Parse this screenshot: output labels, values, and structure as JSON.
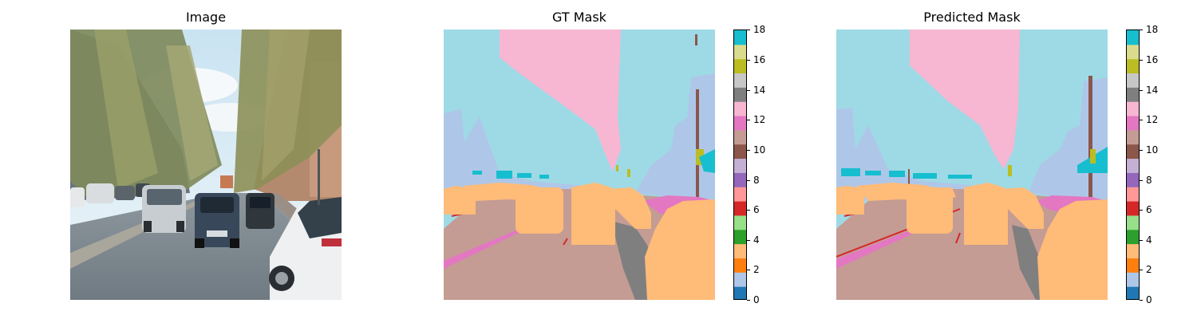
{
  "panels": [
    {
      "title": "Image"
    },
    {
      "title": "GT Mask"
    },
    {
      "title": "Predicted Mask"
    }
  ],
  "colorbar": {
    "colormap": "tab20",
    "range": [
      0,
      18
    ],
    "ticks": [
      "0",
      "2",
      "4",
      "6",
      "8",
      "10",
      "12",
      "14",
      "16",
      "18"
    ],
    "colors": [
      "#1f77b4",
      "#aec7e8",
      "#ff7f0e",
      "#ffbb78",
      "#2ca02c",
      "#98df8a",
      "#d62728",
      "#ff9896",
      "#9467bd",
      "#c5b0d5",
      "#8c564b",
      "#c49c94",
      "#e377c2",
      "#f7b6d2",
      "#7f7f7f",
      "#c7c7c7",
      "#bcbd22",
      "#dbdb8d",
      "#17becf",
      "#9edae5"
    ]
  },
  "classes": {
    "sky": "#9edae5",
    "vegetation": "#f7b6d2",
    "building": "#aec7e8",
    "car": "#ffbb78",
    "road": "#c49c94",
    "sidewalk": "#e377c2",
    "terrain": "#7f7f7f",
    "pole": "#8c564b",
    "lane_marking": "#d62728",
    "sign": "#17becf",
    "traffic_light": "#bcbd22",
    "person": "#9467bd"
  },
  "chart_data": [
    {
      "type": "image",
      "title": "Image"
    },
    {
      "type": "heatmap",
      "title": "GT Mask",
      "colorbar_range": [
        0,
        18
      ],
      "colorbar_ticks": [
        0,
        2,
        4,
        6,
        8,
        10,
        12,
        14,
        16,
        18
      ]
    },
    {
      "type": "heatmap",
      "title": "Predicted Mask",
      "colorbar_range": [
        0,
        18
      ],
      "colorbar_ticks": [
        0,
        2,
        4,
        6,
        8,
        10,
        12,
        14,
        16,
        18
      ]
    }
  ]
}
